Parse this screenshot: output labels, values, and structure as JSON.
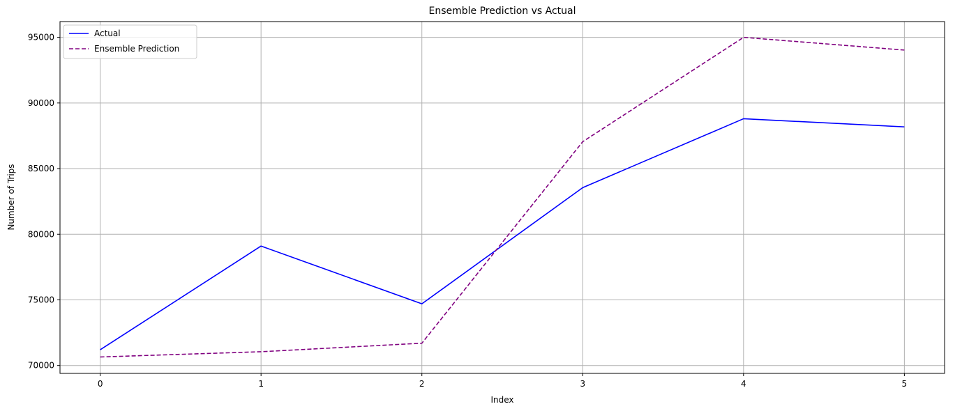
{
  "chart_data": {
    "type": "line",
    "title": "Ensemble Prediction vs Actual",
    "xlabel": "Index",
    "ylabel": "Number of Trips",
    "x": [
      0,
      1,
      2,
      3,
      4,
      5
    ],
    "x_ticks": [
      "0",
      "1",
      "2",
      "3",
      "4",
      "5"
    ],
    "xlim": [
      -0.25,
      5.25
    ],
    "y_ticks": [
      "70000",
      "75000",
      "80000",
      "85000",
      "90000",
      "95000"
    ],
    "ylim": [
      69400,
      96200
    ],
    "grid": true,
    "legend_position": "top-left",
    "series": [
      {
        "name": "Actual",
        "values": [
          71200,
          79100,
          74700,
          83550,
          88800,
          88180
        ],
        "color": "#0000ff",
        "style": "solid"
      },
      {
        "name": "Ensemble Prediction",
        "values": [
          70650,
          71050,
          71700,
          87050,
          95000,
          94030
        ],
        "color": "#800080",
        "style": "dashed"
      }
    ]
  }
}
